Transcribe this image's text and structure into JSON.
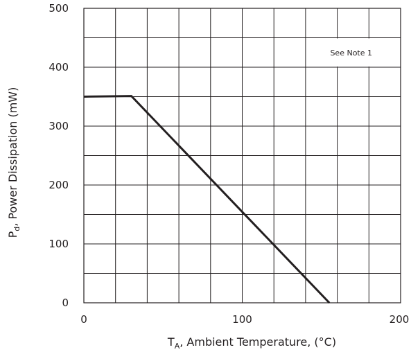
{
  "chart_data": {
    "type": "line",
    "xlabel": {
      "symbol": "T",
      "subscript": "A",
      "text": ", Ambient Temperature,  (°C)"
    },
    "ylabel": {
      "symbol": "P",
      "subscript": "d",
      "text": ", Power  Dissipation  (mW)"
    },
    "xlim": [
      0,
      200
    ],
    "ylim": [
      0,
      500
    ],
    "x_tick_labels": [
      "0",
      "100",
      "200"
    ],
    "x_tick_values": [
      0,
      100,
      200
    ],
    "y_tick_labels": [
      "0",
      "100",
      "200",
      "300",
      "400",
      "500"
    ],
    "y_tick_values": [
      0,
      100,
      200,
      300,
      400,
      500
    ],
    "x_grid_step": 20,
    "y_grid_step": 50,
    "grid": true,
    "annotation": {
      "text": "See  Note 1",
      "placement": "top-right"
    },
    "series": [
      {
        "x": [
          0,
          30,
          155
        ],
        "y": [
          350,
          351,
          0
        ]
      }
    ]
  }
}
